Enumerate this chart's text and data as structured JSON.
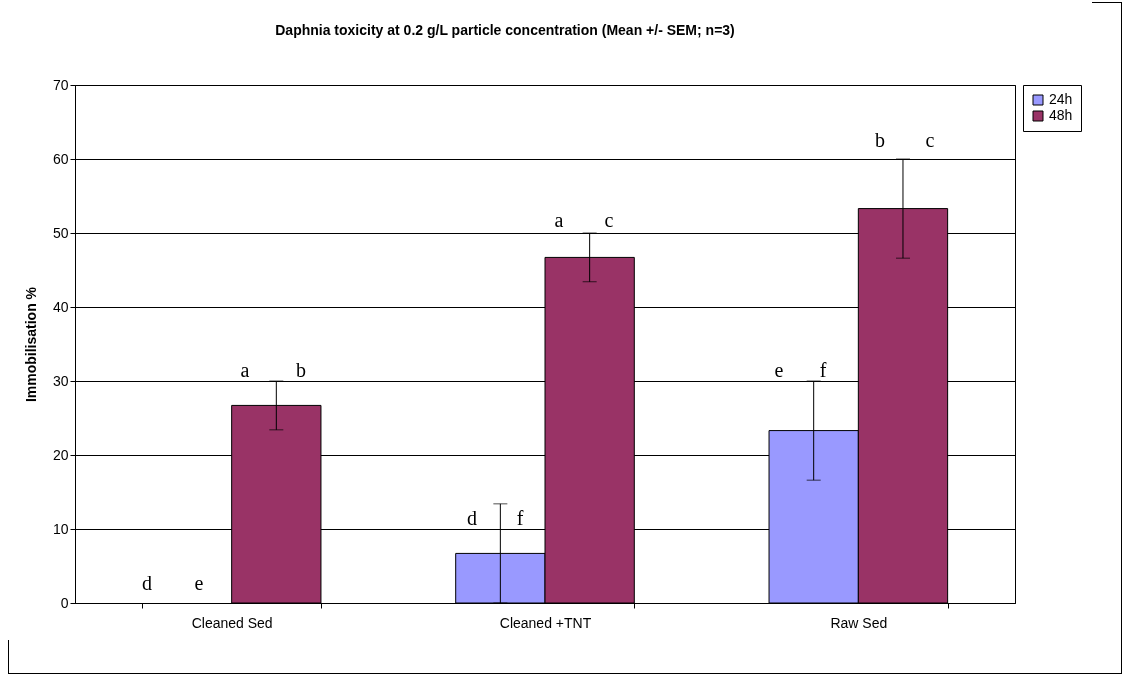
{
  "chart_data": {
    "type": "bar",
    "title": "Daphnia toxicity at 0.2 g/L particle concentration (Mean +/- SEM; n=3)",
    "ylabel": "Immobilisation %",
    "categories": [
      "Cleaned Sed",
      "Cleaned +TNT",
      "Raw Sed"
    ],
    "series": [
      {
        "name": "24h",
        "color": "#9999ff",
        "values": [
          0,
          6.7,
          23.3
        ],
        "errors": [
          null,
          6.7,
          6.7
        ]
      },
      {
        "name": "48h",
        "color": "#993366",
        "values": [
          26.7,
          46.7,
          53.3
        ],
        "errors": [
          3.3,
          3.3,
          6.7
        ]
      }
    ],
    "ylim": [
      0,
      70
    ],
    "yticks": [
      0,
      10,
      20,
      30,
      40,
      50,
      60,
      70
    ],
    "grid": "y",
    "legend": "right",
    "annotations": [
      "d",
      "e",
      "a",
      "b",
      "d",
      "f",
      "a",
      "c",
      "e",
      "f",
      "b",
      "c"
    ]
  }
}
